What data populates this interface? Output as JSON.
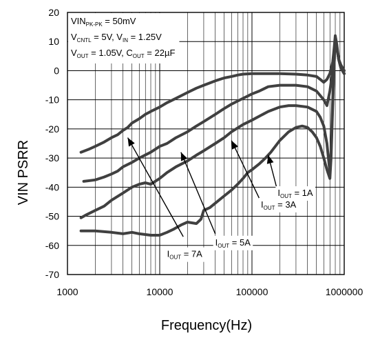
{
  "chart_data": {
    "type": "line",
    "title": "",
    "xlabel": "Frequency(Hz)",
    "ylabel": "VIN PSRR",
    "x_scale": "log",
    "xlim": [
      1000,
      1000000
    ],
    "ylim": [
      -70,
      20
    ],
    "x_ticks": [
      "1000",
      "10000",
      "100000",
      "1000000"
    ],
    "y_ticks": [
      "20",
      "10",
      "0",
      "-10",
      "-20",
      "-30",
      "-40",
      "-50",
      "-60",
      "-70"
    ],
    "grid": true,
    "conditions": [
      {
        "parts": [
          {
            "t": "VIN"
          },
          {
            "t": "PK-PK",
            "sub": true
          },
          {
            "t": " = 50mV"
          }
        ]
      },
      {
        "parts": [
          {
            "t": "V"
          },
          {
            "t": "CNTL",
            "sub": true
          },
          {
            "t": " = 5V, V"
          },
          {
            "t": "IN",
            "sub": true
          },
          {
            "t": " = 1.25V"
          }
        ]
      },
      {
        "parts": [
          {
            "t": "V"
          },
          {
            "t": "OUT",
            "sub": true
          },
          {
            "t": " = 1.05V, C"
          },
          {
            "t": "OUT",
            "sub": true
          },
          {
            "t": " = 22µF"
          }
        ]
      }
    ],
    "series": [
      {
        "label_parts": [
          {
            "t": "I"
          },
          {
            "t": "OUT",
            "sub": true
          },
          {
            "t": " = 7A"
          }
        ],
        "label_at": [
          12000,
          -64
        ],
        "arrow": {
          "from": [
            18000,
            -57
          ],
          "to": [
            4500,
            -23
          ]
        },
        "points": [
          [
            1400,
            -28
          ],
          [
            1700,
            -27
          ],
          [
            2000,
            -26
          ],
          [
            2500,
            -24.5
          ],
          [
            3000,
            -23
          ],
          [
            3500,
            -22
          ],
          [
            4000,
            -20.5
          ],
          [
            4500,
            -19.5
          ],
          [
            5000,
            -18
          ],
          [
            6000,
            -16.5
          ],
          [
            7000,
            -15
          ],
          [
            8000,
            -14
          ],
          [
            10000,
            -12.5
          ],
          [
            12000,
            -11
          ],
          [
            15000,
            -9.5
          ],
          [
            20000,
            -7.5
          ],
          [
            25000,
            -6
          ],
          [
            30000,
            -5
          ],
          [
            40000,
            -3.5
          ],
          [
            50000,
            -2.5
          ],
          [
            60000,
            -2
          ],
          [
            70000,
            -1.5
          ],
          [
            80000,
            -1.2
          ],
          [
            100000,
            -1
          ],
          [
            150000,
            -1
          ],
          [
            200000,
            -1
          ],
          [
            300000,
            -1.2
          ],
          [
            400000,
            -1.5
          ],
          [
            500000,
            -2
          ],
          [
            550000,
            -3
          ],
          [
            600000,
            -4
          ],
          [
            650000,
            -3
          ],
          [
            700000,
            -1
          ],
          [
            750000,
            3
          ],
          [
            780000,
            8
          ],
          [
            800000,
            12
          ],
          [
            830000,
            9
          ],
          [
            870000,
            4
          ],
          [
            920000,
            2
          ],
          [
            1000000,
            0
          ]
        ]
      },
      {
        "label_parts": [
          {
            "t": "I"
          },
          {
            "t": "OUT",
            "sub": true
          },
          {
            "t": " = 5A"
          }
        ],
        "label_at": [
          40000,
          -60
        ],
        "arrow": {
          "from": [
            40000,
            -56
          ],
          "to": [
            17000,
            -28
          ]
        },
        "points": [
          [
            1500,
            -38
          ],
          [
            2000,
            -37.5
          ],
          [
            2500,
            -36.5
          ],
          [
            3000,
            -35.5
          ],
          [
            3500,
            -34.5
          ],
          [
            4000,
            -33
          ],
          [
            5000,
            -31.5
          ],
          [
            6000,
            -30
          ],
          [
            8000,
            -28
          ],
          [
            10000,
            -26
          ],
          [
            12000,
            -25
          ],
          [
            15000,
            -23
          ],
          [
            20000,
            -21
          ],
          [
            25000,
            -19
          ],
          [
            30000,
            -17.5
          ],
          [
            40000,
            -15
          ],
          [
            50000,
            -13
          ],
          [
            60000,
            -11.5
          ],
          [
            80000,
            -9.5
          ],
          [
            100000,
            -8
          ],
          [
            120000,
            -7
          ],
          [
            150000,
            -5.5
          ],
          [
            200000,
            -5
          ],
          [
            250000,
            -5
          ],
          [
            300000,
            -5
          ],
          [
            400000,
            -5.5
          ],
          [
            500000,
            -7
          ],
          [
            600000,
            -10
          ],
          [
            650000,
            -12
          ],
          [
            700000,
            -7
          ],
          [
            750000,
            0
          ],
          [
            780000,
            7
          ],
          [
            800000,
            11
          ],
          [
            830000,
            8
          ],
          [
            870000,
            4
          ],
          [
            920000,
            1
          ],
          [
            1000000,
            -1
          ]
        ]
      },
      {
        "label_parts": [
          {
            "t": "I"
          },
          {
            "t": "OUT",
            "sub": true
          },
          {
            "t": " = 3A"
          }
        ],
        "label_at": [
          125000,
          -47
        ],
        "arrow": {
          "from": [
            125000,
            -45
          ],
          "to": [
            60000,
            -24
          ]
        },
        "points": [
          [
            1400,
            -50.5
          ],
          [
            1600,
            -49.5
          ],
          [
            2000,
            -48
          ],
          [
            2500,
            -46.5
          ],
          [
            3000,
            -44.5
          ],
          [
            4000,
            -42
          ],
          [
            5000,
            -40
          ],
          [
            6000,
            -39
          ],
          [
            7000,
            -38.5
          ],
          [
            8000,
            -39
          ],
          [
            10000,
            -37
          ],
          [
            12000,
            -35
          ],
          [
            15000,
            -33
          ],
          [
            20000,
            -31
          ],
          [
            25000,
            -29
          ],
          [
            30000,
            -27.5
          ],
          [
            40000,
            -25
          ],
          [
            50000,
            -23
          ],
          [
            60000,
            -21
          ],
          [
            80000,
            -18.5
          ],
          [
            100000,
            -17
          ],
          [
            150000,
            -14
          ],
          [
            200000,
            -12.5
          ],
          [
            250000,
            -12
          ],
          [
            300000,
            -12
          ],
          [
            400000,
            -12.5
          ],
          [
            500000,
            -14
          ],
          [
            550000,
            -16
          ],
          [
            600000,
            -19
          ],
          [
            650000,
            -25
          ],
          [
            700000,
            -35
          ],
          [
            720000,
            -28
          ],
          [
            750000,
            -10
          ],
          [
            780000,
            3
          ],
          [
            800000,
            11
          ],
          [
            830000,
            8
          ],
          [
            870000,
            4
          ],
          [
            920000,
            1
          ],
          [
            1000000,
            -1
          ]
        ]
      },
      {
        "label_parts": [
          {
            "t": "I"
          },
          {
            "t": "OUT",
            "sub": true
          },
          {
            "t": " = 1A"
          }
        ],
        "label_at": [
          190000,
          -43
        ],
        "arrow": {
          "from": [
            190000,
            -41.5
          ],
          "to": [
            150000,
            -29
          ]
        },
        "points": [
          [
            1400,
            -55
          ],
          [
            2000,
            -55
          ],
          [
            3000,
            -55.5
          ],
          [
            4000,
            -56
          ],
          [
            5000,
            -55.5
          ],
          [
            6000,
            -56
          ],
          [
            8000,
            -56.5
          ],
          [
            10000,
            -56.5
          ],
          [
            12000,
            -55.5
          ],
          [
            14000,
            -54.5
          ],
          [
            17000,
            -53
          ],
          [
            20000,
            -52
          ],
          [
            25000,
            -52.5
          ],
          [
            28000,
            -51
          ],
          [
            30000,
            -48
          ],
          [
            35000,
            -47
          ],
          [
            40000,
            -45.5
          ],
          [
            50000,
            -43
          ],
          [
            60000,
            -41
          ],
          [
            70000,
            -39
          ],
          [
            80000,
            -37
          ],
          [
            90000,
            -35
          ],
          [
            100000,
            -34
          ],
          [
            120000,
            -32
          ],
          [
            140000,
            -30
          ],
          [
            160000,
            -28
          ],
          [
            200000,
            -24
          ],
          [
            250000,
            -21
          ],
          [
            300000,
            -19.5
          ],
          [
            350000,
            -19
          ],
          [
            400000,
            -19.5
          ],
          [
            450000,
            -21
          ],
          [
            500000,
            -23
          ],
          [
            550000,
            -26
          ],
          [
            600000,
            -30
          ],
          [
            650000,
            -34
          ],
          [
            700000,
            -37
          ],
          [
            720000,
            -30
          ],
          [
            750000,
            -12
          ],
          [
            780000,
            3
          ],
          [
            800000,
            11
          ],
          [
            830000,
            8
          ],
          [
            870000,
            4
          ],
          [
            920000,
            1
          ],
          [
            1000000,
            -1
          ]
        ]
      }
    ]
  }
}
